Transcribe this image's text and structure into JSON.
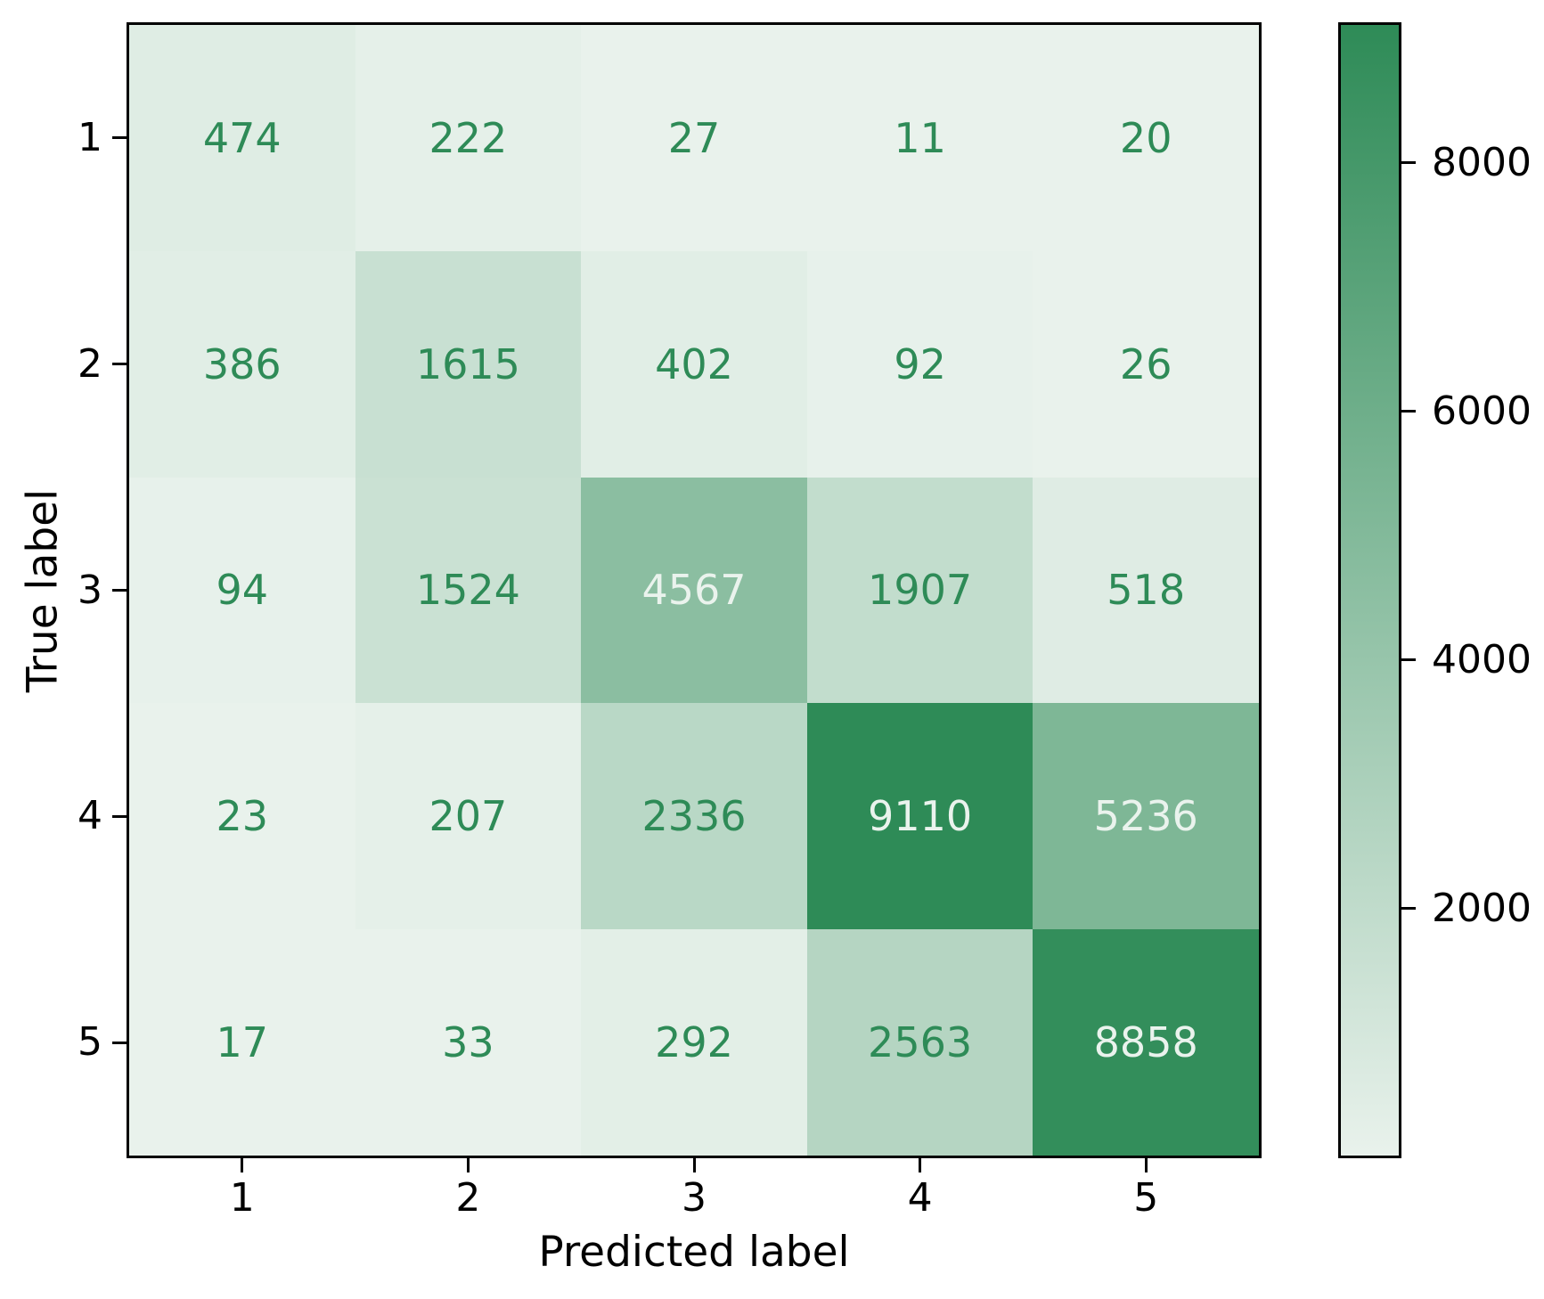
{
  "figure": {
    "kind": "confusion matrix heatmap"
  },
  "chart_data": {
    "type": "heatmap",
    "title": "",
    "xlabel": "Predicted label",
    "ylabel": "True label",
    "x_tick_labels": [
      "1",
      "2",
      "3",
      "4",
      "5"
    ],
    "y_tick_labels": [
      "1",
      "2",
      "3",
      "4",
      "5"
    ],
    "matrix": [
      [
        474,
        222,
        27,
        11,
        20
      ],
      [
        386,
        1615,
        402,
        92,
        26
      ],
      [
        94,
        1524,
        4567,
        1907,
        518
      ],
      [
        23,
        207,
        2336,
        9110,
        5236
      ],
      [
        17,
        33,
        292,
        2563,
        8858
      ]
    ],
    "vmin": 11,
    "vmax": 9110,
    "colorbar_ticks": [
      2000,
      4000,
      6000,
      8000
    ],
    "legend_position": "right-colorbar",
    "grid": false,
    "colors": {
      "cmap_min": "#e9f2ec",
      "cmap_max": "#2e8b57",
      "annotation_low_color": "#2e8b57",
      "annotation_high_color": "#eaf3ed",
      "axis_text": "#000000",
      "spine": "#000000",
      "background": "#ffffff"
    }
  }
}
